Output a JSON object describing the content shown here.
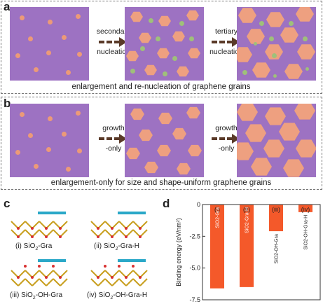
{
  "panel_a": {
    "label": "a",
    "arrow1": [
      "secondary",
      "nucleation"
    ],
    "arrow2": [
      "tertiary",
      "nucleation"
    ],
    "caption": "enlargement and re-nucleation of graphene grains"
  },
  "panel_b": {
    "label": "b",
    "arrow1": [
      "growth",
      "-only"
    ],
    "arrow2": [
      "growth",
      "-only"
    ],
    "caption": "enlargement-only for size and shape-uniform graphene grains"
  },
  "panel_c": {
    "label": "c",
    "structures": [
      {
        "roman": "(i)",
        "pre": "SiO",
        "sub": "2",
        "post": "-Gra"
      },
      {
        "roman": "(ii)",
        "pre": "SiO",
        "sub": "2",
        "post": "-Gra-H"
      },
      {
        "roman": "(iii)",
        "pre": "SiO",
        "sub": "2",
        "post": "-OH-Gra"
      },
      {
        "roman": "(iv)",
        "pre": "SiO",
        "sub": "2",
        "post": "-OH-Gra-H"
      }
    ]
  },
  "panel_d": {
    "label": "d"
  },
  "colors": {
    "substrate": "#9d72c2",
    "grain": "#eea080",
    "nucleus_new": "#9fc07a",
    "arrow": "#5a3a28",
    "bar": "#f4592a"
  },
  "chart_data": {
    "type": "bar",
    "categories": [
      "(i)",
      "(ii)",
      "(iii)",
      "(iv)"
    ],
    "bar_labels": [
      "SiO2-Gra",
      "SiO2-Gra-H",
      "SiO2-OH-Gra",
      "SiO2-OH-Gra-H"
    ],
    "values": [
      -6.6,
      -6.5,
      -2.1,
      -0.6
    ],
    "ylabel": "Binding energy (eV/nm²)",
    "ylim": [
      -7.5,
      0
    ],
    "yticks": [
      0,
      -2.5,
      -5.0,
      -7.5
    ],
    "ytick_labels": [
      "0",
      "-2.5",
      "-5.0",
      "-7.5"
    ]
  }
}
